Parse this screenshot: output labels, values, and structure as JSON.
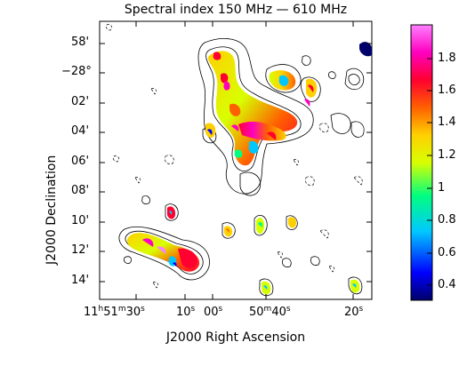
{
  "title": "Spectral index 150 MHz — 610 MHz",
  "axes": {
    "xlabel": "J2000 Right Ascension",
    "ylabel": "J2000 Declination",
    "dec_ticks": [
      "58'",
      "−28°",
      "02'",
      "04'",
      "06'",
      "08'",
      "10'",
      "12'",
      "14'"
    ],
    "ra_ticks": [
      {
        "h": "11",
        "hs": "h",
        "m": "51",
        "ms": "m",
        "s": "30",
        "ss": "s"
      },
      {
        "s": "10",
        "ss": "s"
      },
      {
        "s": "00",
        "ss": "s"
      },
      {
        "m": "50",
        "ms": "m",
        "s": "40",
        "ss": "s"
      },
      {
        "s": "20",
        "ss": "s"
      }
    ]
  },
  "colorbar": {
    "ticks": [
      "1.8",
      "1.6",
      "1.4",
      "1.2",
      "1",
      "0.8",
      "0.6",
      "0.4"
    ],
    "min": 0.3,
    "max": 2.0,
    "colors": [
      "#00006a",
      "#0000ff",
      "#00c8ff",
      "#00ff80",
      "#d8ff00",
      "#ffd000",
      "#ff6000",
      "#ff0030",
      "#ff00c0",
      "#ff80ff"
    ]
  },
  "panel": {
    "background": "#ffffff",
    "border": "#000000"
  }
}
